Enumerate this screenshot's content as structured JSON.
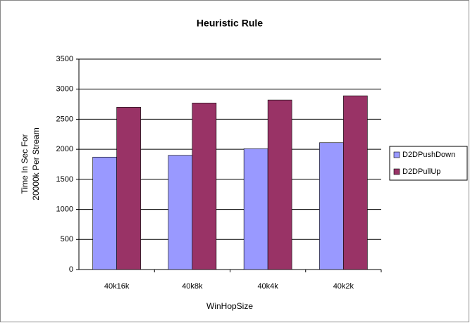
{
  "chart_data": {
    "type": "bar",
    "title": "Heuristic Rule",
    "xlabel": "WinHopSize",
    "ylabel": [
      "Time In Sec For",
      "20000k Per Stream"
    ],
    "categories": [
      "40k16k",
      "40k8k",
      "40k4k",
      "40k2k"
    ],
    "series": [
      {
        "name": "D2DPushDown",
        "color": "#9999ff",
        "values": [
          1870,
          1900,
          2010,
          2110
        ]
      },
      {
        "name": "D2DPullUp",
        "color": "#993366",
        "values": [
          2700,
          2770,
          2820,
          2890
        ]
      }
    ],
    "ylim": [
      0,
      3500
    ],
    "yticks": [
      0,
      500,
      1000,
      1500,
      2000,
      2500,
      3000,
      3500
    ],
    "grid": true,
    "legend": "right"
  }
}
